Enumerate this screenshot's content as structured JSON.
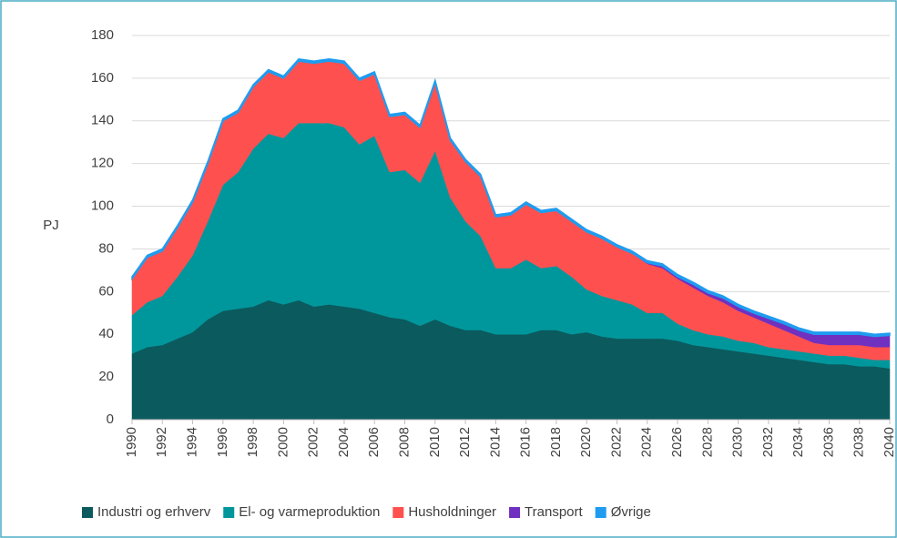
{
  "chart_data": {
    "type": "stacked_area",
    "y_label": "PJ",
    "x": [
      1990,
      1991,
      1992,
      1993,
      1994,
      1995,
      1996,
      1997,
      1998,
      1999,
      2000,
      2001,
      2002,
      2003,
      2004,
      2005,
      2006,
      2007,
      2008,
      2009,
      2010,
      2011,
      2012,
      2013,
      2014,
      2015,
      2016,
      2017,
      2018,
      2019,
      2020,
      2021,
      2022,
      2023,
      2024,
      2025,
      2026,
      2027,
      2028,
      2029,
      2030,
      2031,
      2032,
      2033,
      2034,
      2035,
      2036,
      2037,
      2038,
      2039,
      2040
    ],
    "xlim": [
      1990,
      2040
    ],
    "xticks": [
      1990,
      1992,
      1994,
      1996,
      1998,
      2000,
      2002,
      2004,
      2006,
      2008,
      2010,
      2012,
      2014,
      2016,
      2018,
      2020,
      2022,
      2024,
      2026,
      2028,
      2030,
      2032,
      2034,
      2036,
      2038,
      2040
    ],
    "ylim": [
      0,
      180
    ],
    "yticks": [
      0,
      20,
      40,
      60,
      80,
      100,
      120,
      140,
      160,
      180
    ],
    "grid": true,
    "legend": "bottom",
    "series": [
      {
        "name": "Industri og erhverv",
        "color": "#0b5a5e",
        "values": [
          31,
          34,
          35,
          38,
          41,
          47,
          51,
          52,
          53,
          56,
          54,
          56,
          53,
          54,
          53,
          52,
          50,
          48,
          47,
          44,
          47,
          44,
          42,
          42,
          40,
          40,
          40,
          42,
          42,
          40,
          41,
          39,
          38,
          38,
          38,
          38,
          37,
          35,
          34,
          33,
          32,
          31,
          30,
          29,
          28,
          27,
          26,
          26,
          25,
          25,
          24
        ]
      },
      {
        "name": "El- og varmeproduktion",
        "color": "#00979c",
        "values": [
          18,
          21,
          23,
          29,
          36,
          46,
          59,
          64,
          74,
          78,
          78,
          83,
          86,
          85,
          84,
          77,
          83,
          68,
          70,
          67,
          79,
          60,
          51,
          44,
          31,
          31,
          35,
          29,
          30,
          27,
          20,
          19,
          18,
          16,
          12,
          12,
          8,
          7,
          6,
          6,
          5,
          5,
          4,
          4,
          4,
          4,
          4,
          4,
          4,
          3,
          4
        ]
      },
      {
        "name": "Husholdninger",
        "color": "#ff5050",
        "values": [
          17,
          21,
          21,
          23,
          25,
          27,
          30,
          28,
          29,
          29,
          28,
          29,
          28,
          29,
          30,
          30,
          29,
          26,
          26,
          26,
          32,
          27,
          28,
          28,
          24,
          25,
          26,
          26,
          26,
          26,
          27,
          27,
          25,
          24,
          23,
          21,
          21,
          20,
          18,
          16,
          14,
          12,
          11,
          9,
          7,
          5,
          5,
          5,
          6,
          6,
          6
        ]
      },
      {
        "name": "Transport",
        "color": "#7030c0",
        "values": [
          0,
          0,
          0,
          0,
          0,
          0,
          0,
          0,
          0,
          0,
          0,
          0,
          0,
          0,
          0,
          0,
          0,
          0,
          0,
          0,
          0,
          0,
          0,
          0,
          0,
          0,
          0,
          0,
          0,
          0,
          0,
          0,
          0,
          0,
          0.5,
          1,
          1,
          1.5,
          1.5,
          2,
          2,
          2,
          2.5,
          3,
          3,
          4,
          5,
          5,
          5,
          5,
          5.5
        ]
      },
      {
        "name": "Øvrige",
        "color": "#1f9cf0",
        "values": [
          1,
          1,
          1,
          1,
          1,
          1,
          1,
          1,
          1,
          1,
          1,
          1,
          1,
          1,
          1,
          1,
          1,
          1,
          1,
          1,
          1,
          1,
          1,
          1,
          1,
          1,
          1,
          1,
          1,
          1,
          1,
          1,
          1,
          1,
          1,
          1,
          1,
          1,
          1,
          1,
          1,
          1,
          1,
          1,
          1,
          1,
          1,
          1,
          1,
          1,
          1
        ]
      }
    ]
  }
}
